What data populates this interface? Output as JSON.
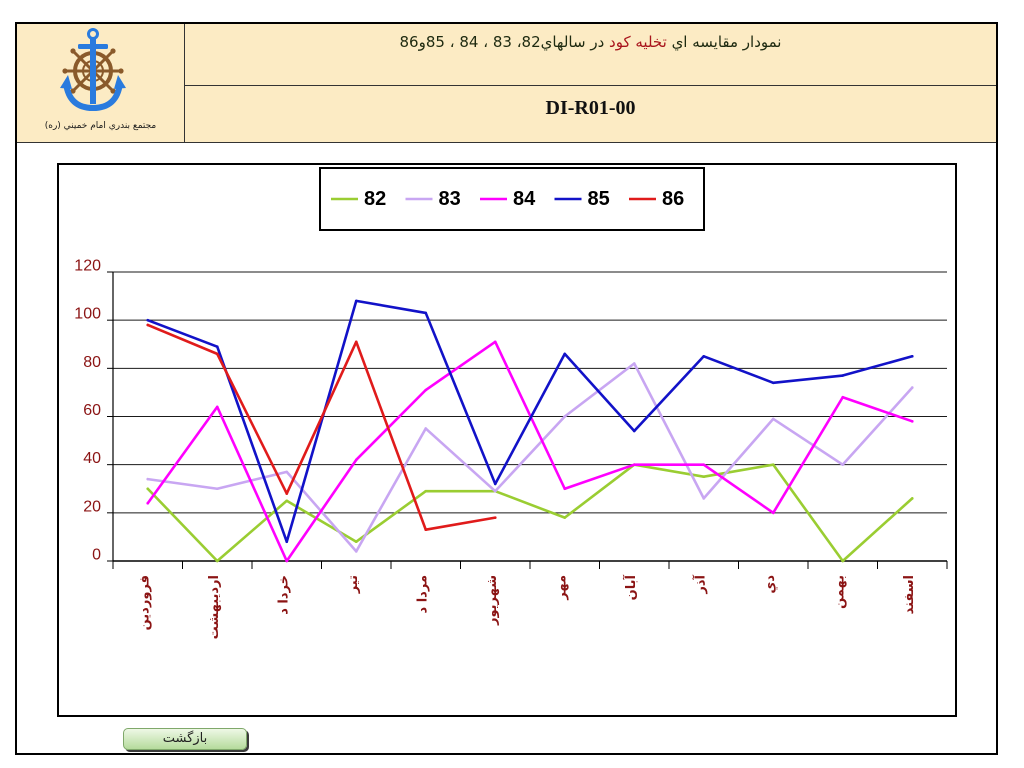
{
  "header": {
    "logo_icon": "anchor-ship-wheel-icon",
    "org_name": "مجتمع بندري امام خميني (ره)",
    "title_part1": "نمودار مقايسه اي",
    "title_highlight": "تخليه كود",
    "title_part3": "در سالهاي82، 83 ، 84 ، 85و86",
    "doc_code": "DI-R01-00"
  },
  "colors": {
    "header_bg": "#FCEBC4",
    "title_text": "#1E2A10",
    "title_highlight": "#A8141C",
    "axis_labels": "#8B1414",
    "gridlines": "#1A1A1A"
  },
  "chart_data": {
    "type": "line",
    "categories": [
      "فروردين",
      "ارديبهشت",
      "خردا د",
      "تير",
      "مردا د",
      "شهريور",
      "مهر",
      "آبان",
      "آذر",
      "دي",
      "بهمن",
      "اسفند"
    ],
    "series": [
      {
        "name": "82",
        "color": "#9ACD32",
        "values": [
          30,
          0,
          25,
          8,
          29,
          29,
          18,
          40,
          35,
          40,
          0,
          26
        ]
      },
      {
        "name": "83",
        "color": "#C8A6F2",
        "values": [
          34,
          30,
          37,
          4,
          55,
          29,
          60,
          82,
          26,
          59,
          40,
          72
        ]
      },
      {
        "name": "84",
        "color": "#FF00FF",
        "values": [
          24,
          64,
          0,
          42,
          71,
          91,
          30,
          40,
          40,
          20,
          68,
          58
        ]
      },
      {
        "name": "85",
        "color": "#1212C8",
        "values": [
          100,
          89,
          8,
          108,
          103,
          32,
          86,
          54,
          85,
          74,
          77,
          85
        ]
      },
      {
        "name": "86",
        "color": "#E01B1B",
        "values": [
          98,
          86,
          28,
          91,
          13,
          18,
          null,
          null,
          null,
          null,
          null,
          null
        ]
      }
    ],
    "ylim": [
      0,
      120
    ],
    "yticks": [
      0,
      20,
      40,
      60,
      80,
      100,
      120
    ],
    "grid": true,
    "legend": "top"
  },
  "navigation": {
    "back_label": "بازگشت"
  }
}
